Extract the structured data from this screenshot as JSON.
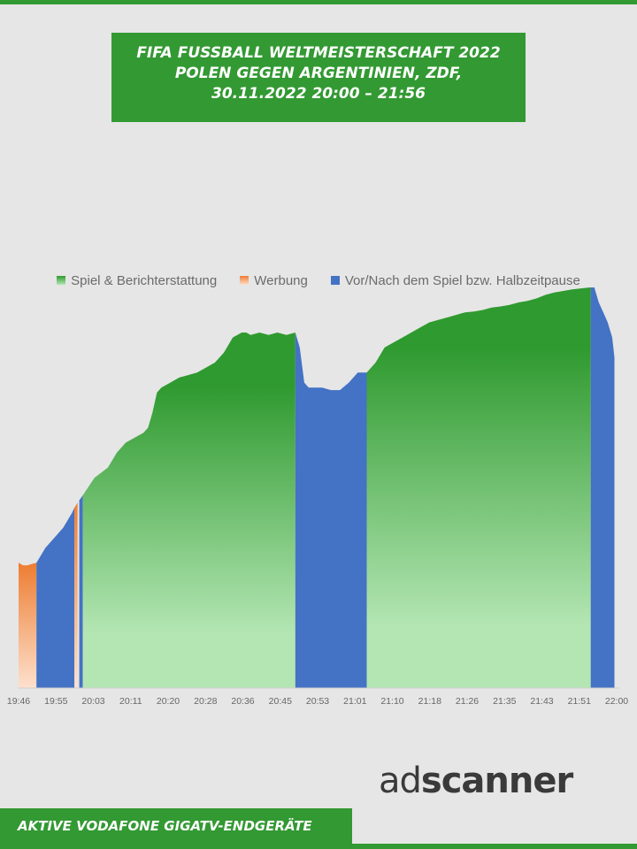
{
  "title": {
    "line1": "FIFA FUSSBALL WELTMEISTERSCHAFT 2022",
    "line2": "POLEN GEGEN ARGENTINIEN, ZDF,",
    "line3": "30.11.2022  20:00 – 21:56"
  },
  "footer": "AKTIVE VODAFONE GIGATV-ENDGERÄTE",
  "logo": {
    "ad": "ad",
    "rest": "scanner"
  },
  "colors": {
    "brand_green": "#339933",
    "spiel_top": "#2f9a2f",
    "spiel_bottom": "#b4e6b4",
    "werbung_top": "#ed7d31",
    "werbung_bottom": "#fde0cd",
    "halbzeit": "#4472c4"
  },
  "chart_data": {
    "type": "area",
    "x_unit": "minutes after 19:46",
    "x_ticks": [
      "19:46",
      "19:55",
      "20:03",
      "20:11",
      "20:20",
      "20:28",
      "20:36",
      "20:45",
      "20:53",
      "21:01",
      "21:10",
      "21:18",
      "21:26",
      "21:35",
      "21:43",
      "21:51",
      "22:00"
    ],
    "xlim": [
      0,
      134
    ],
    "ylim": [
      0,
      100
    ],
    "legend": [
      {
        "key": "spiel",
        "name": "Spiel & Berichterstattung",
        "color": "spiel"
      },
      {
        "key": "werbung",
        "name": "Werbung",
        "color": "werbung"
      },
      {
        "key": "halbzeit",
        "name": "Vor/Nach dem Spiel bzw. Halbzeitpause",
        "color": "halbzeit"
      }
    ],
    "legend_position": "top-center",
    "grid": false,
    "y_axis_labels": false,
    "segments": [
      {
        "series": "werbung",
        "x": [
          0,
          1,
          2,
          3,
          4
        ],
        "y": [
          45,
          44.5,
          44.5,
          44.8,
          45
        ]
      },
      {
        "series": "halbzeit",
        "x": [
          4,
          6,
          8,
          10,
          12,
          12.5
        ],
        "y": [
          45,
          48,
          50,
          52,
          55,
          56
        ]
      },
      {
        "series": "werbung",
        "x": [
          12.5,
          13.2
        ],
        "y": [
          56,
          57
        ]
      },
      {
        "series": "halbzeit",
        "x": [
          13.6,
          14.4
        ],
        "y": [
          57.5,
          58.5
        ]
      },
      {
        "series": "spiel",
        "x": [
          14.4,
          17,
          20,
          22,
          24,
          26,
          28,
          29,
          30,
          31,
          32,
          34,
          36,
          38,
          40,
          42,
          44,
          46,
          48,
          50,
          51,
          52,
          54,
          56,
          58,
          60,
          62
        ],
        "y": [
          58.5,
          62,
          64,
          67,
          69,
          70,
          71,
          72,
          75,
          79,
          80,
          81,
          82,
          82.5,
          83,
          84,
          85,
          87,
          90,
          91,
          91,
          90.5,
          91,
          90.5,
          91,
          90.5,
          91
        ]
      },
      {
        "series": "halbzeit",
        "x": [
          62,
          63,
          64,
          65,
          66,
          68,
          70,
          72,
          74,
          76,
          78
        ],
        "y": [
          91,
          88,
          81,
          80,
          80,
          80,
          79.5,
          79.5,
          81,
          83,
          83
        ]
      },
      {
        "series": "spiel",
        "x": [
          78,
          80,
          82,
          84,
          86,
          88,
          90,
          92,
          94,
          96,
          98,
          100,
          102,
          104,
          106,
          108,
          110,
          112,
          114,
          116,
          118,
          120,
          122,
          124,
          126,
          128,
          128.2
        ],
        "y": [
          83,
          85,
          88,
          89,
          90,
          91,
          92,
          93,
          93.5,
          94,
          94.5,
          95,
          95.2,
          95.5,
          96,
          96.2,
          96.5,
          97,
          97.3,
          97.8,
          98.5,
          99,
          99.3,
          99.6,
          99.8,
          100,
          100
        ]
      },
      {
        "series": "halbzeit",
        "x": [
          128.2,
          129,
          130,
          131,
          132,
          133,
          133.5
        ],
        "y": [
          100,
          100,
          97,
          95,
          93,
          90,
          86
        ]
      }
    ]
  }
}
